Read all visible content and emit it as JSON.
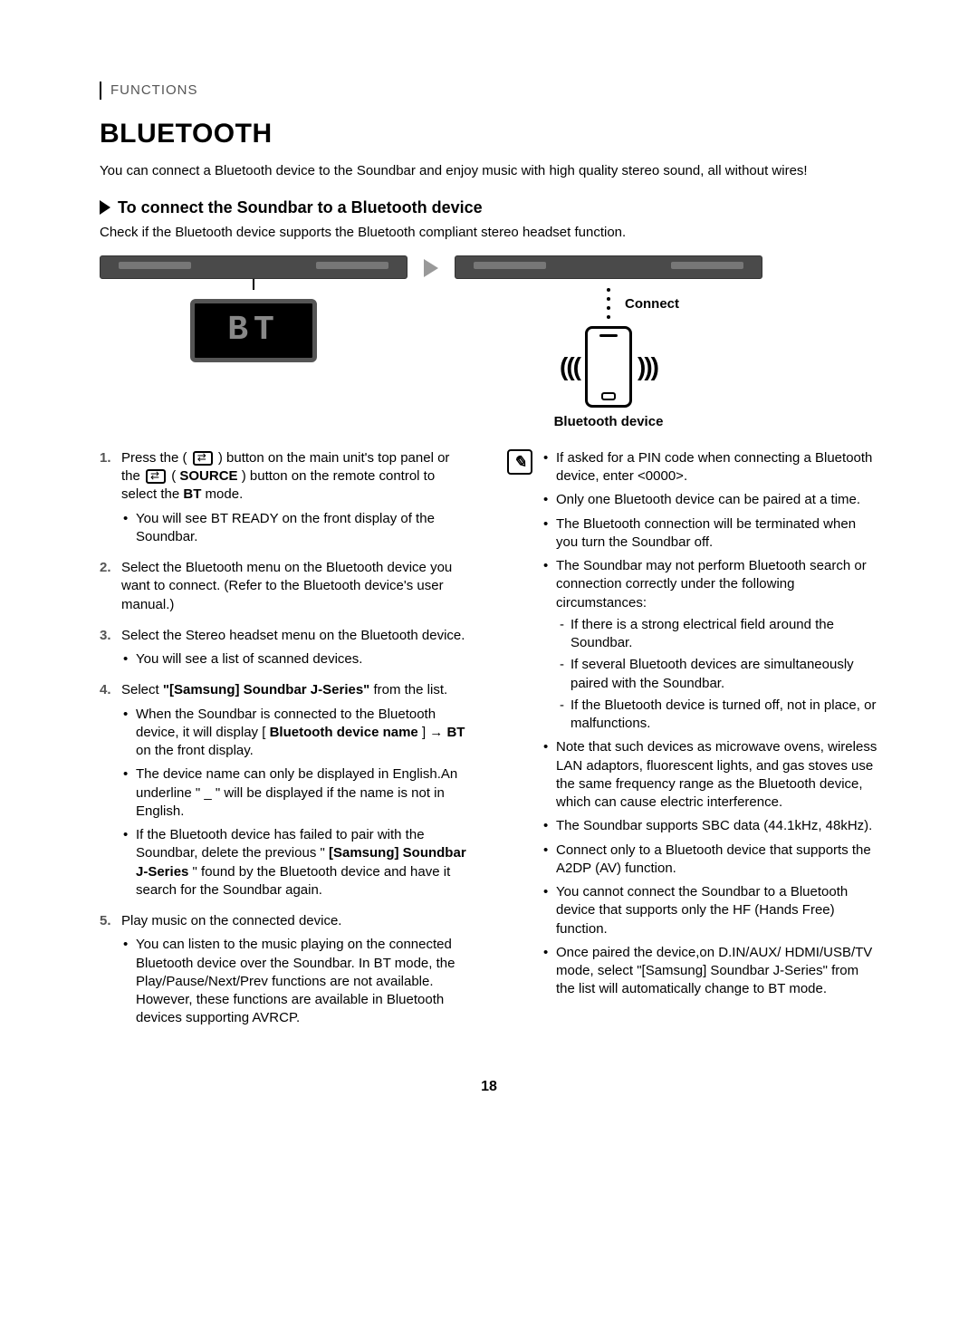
{
  "section_label": "FUNCTIONS",
  "title": "BLUETOOTH",
  "intro": "You can connect a Bluetooth device to the Soundbar and enjoy music with high quality stereo sound, all without wires!",
  "subheading": "To connect the Soundbar to a Bluetooth device",
  "check_line": "Check if the Bluetooth device supports the Bluetooth compliant stereo headset function.",
  "diagram": {
    "bt_display": "BT",
    "connect_label": "Connect",
    "bt_device_label": "Bluetooth device",
    "wave_left": "(((",
    "wave_right": ")))"
  },
  "steps": {
    "s1_a": "Press the (",
    "s1_b": ") button on the main unit's top panel or the ",
    "s1_c": " (",
    "s1_source": "SOURCE",
    "s1_d": ") button on the remote control to select the ",
    "s1_bt": "BT",
    "s1_e": " mode.",
    "s1_sub1": "You will see BT READY on the front display of the Soundbar.",
    "s2": "Select the Bluetooth menu on the Bluetooth device you want to connect. (Refer to the Bluetooth device's user manual.)",
    "s3": "Select the Stereo headset menu on the Bluetooth device.",
    "s3_sub1": "You will see a list of scanned devices.",
    "s4_a": "Select ",
    "s4_bold": "\"[Samsung] Soundbar J-Series\"",
    "s4_b": " from the list.",
    "s4_sub1_a": "When the Soundbar is connected to the Bluetooth device, it will display [",
    "s4_sub1_bold": "Bluetooth device name",
    "s4_sub1_b": "] → ",
    "s4_sub1_bt": "BT",
    "s4_sub1_c": " on the front display.",
    "s4_sub2": "The device name can only be displayed in English.An underline \" _ \" will be displayed if the name is not in English.",
    "s4_sub3_a": "If the Bluetooth device has failed to pair with the Soundbar, delete the previous \"",
    "s4_sub3_bold": "[Samsung] Soundbar J-Series",
    "s4_sub3_b": "\" found by the Bluetooth device and have it search for the Soundbar again.",
    "s5": "Play music on the connected device.",
    "s5_sub1": "You can listen to the music playing on the connected Bluetooth device over the Soundbar. In BT mode, the Play/Pause/Next/Prev functions are not available. However, these functions are available in Bluetooth devices supporting AVRCP."
  },
  "notes": {
    "n1": "If asked for a PIN code when connecting a Bluetooth device, enter <0000>.",
    "n2": "Only one Bluetooth device can be paired at a time.",
    "n3": "The Bluetooth connection will be terminated when you turn the Soundbar off.",
    "n4": "The Soundbar may not perform Bluetooth search or connection correctly under the following circumstances:",
    "n4_d1": "If there is a strong electrical field around the Soundbar.",
    "n4_d2": "If several Bluetooth devices are simultaneously paired with the Soundbar.",
    "n4_d3": "If the Bluetooth device is turned off, not in place, or malfunctions.",
    "n5": "Note that such devices as microwave ovens, wireless LAN adaptors, fluorescent lights, and gas stoves use the same frequency range as the Bluetooth device, which can cause electric interference.",
    "n6": "The Soundbar supports SBC data (44.1kHz, 48kHz).",
    "n7": "Connect only to a Bluetooth device that supports the A2DP (AV) function.",
    "n8": "You cannot connect the Soundbar to a Bluetooth device that supports only the HF (Hands Free) function.",
    "n9": "Once paired the device,on D.IN/AUX/ HDMI/USB/TV mode, select \"[Samsung] Soundbar J-Series\" from the list will automatically change to BT mode."
  },
  "page_number": "18",
  "colors": {
    "text": "#000000",
    "bg": "#ffffff",
    "soundbar": "#4a4a4a",
    "bt_screen_bg": "#000000",
    "bt_screen_fg": "#888888",
    "arrow": "#999999"
  }
}
